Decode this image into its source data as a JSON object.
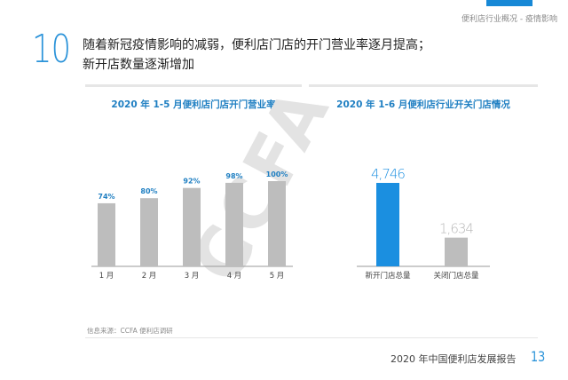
{
  "breadcrumb": "便利店行业概况 - 疫情影响",
  "section_number": "10",
  "headline": [
    "随着新冠疫情影响的减弱，便利店门店的开门营业率逐月提高；",
    "新开店数量逐渐增加"
  ],
  "watermark": "CCFA",
  "source": "信息来源：CCFA 便利店调研",
  "footer": {
    "report_title": "2020 年中国便利店发展报告",
    "page_number": "13"
  },
  "colors": {
    "accent": "#2b93d9",
    "bar_gray": "#bdbdbd",
    "bar_blue": "#1b8fe0",
    "title_blue": "#1f7fc2"
  },
  "chart_data": [
    {
      "type": "bar",
      "title": "2020 年 1-5 月便利店门店开门营业率",
      "categories": [
        "1 月",
        "2 月",
        "3 月",
        "4 月",
        "5 月"
      ],
      "values": [
        74,
        80,
        92,
        98,
        100
      ],
      "value_labels": [
        "74%",
        "80%",
        "92%",
        "98%",
        "100%"
      ],
      "unit": "%",
      "ylim": [
        0,
        100
      ],
      "grid": false
    },
    {
      "type": "bar",
      "title": "2020 年 1-6 月便利店行业开关门店情况",
      "categories": [
        "新开门店总量",
        "关闭门店总量"
      ],
      "values": [
        4746,
        1634
      ],
      "value_labels": [
        "4,746",
        "1,634"
      ],
      "ylim": [
        0,
        4746
      ],
      "grid": false
    }
  ]
}
